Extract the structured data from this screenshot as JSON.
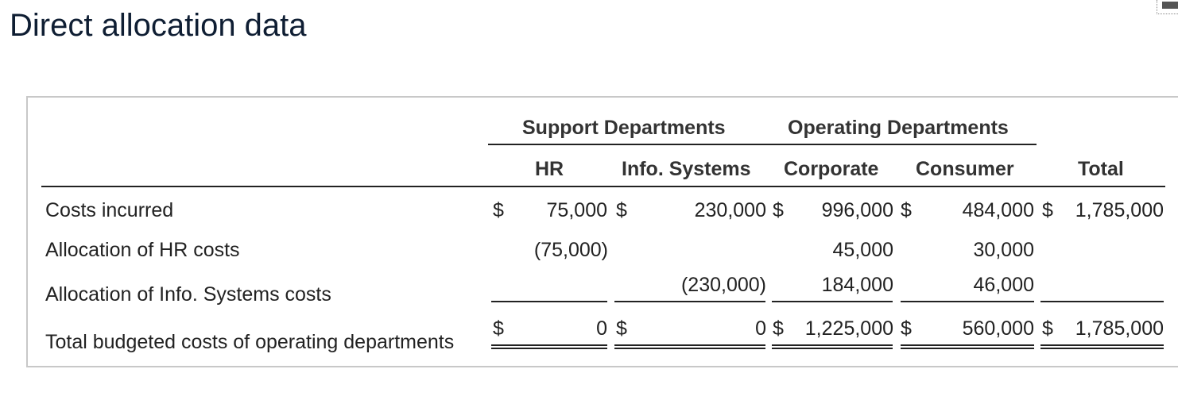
{
  "title": "Direct allocation data",
  "header": {
    "group_support": "Support Departments",
    "group_operating": "Operating Departments",
    "col_hr": "HR",
    "col_info": "Info. Systems",
    "col_corporate": "Corporate",
    "col_consumer": "Consumer",
    "col_total": "Total"
  },
  "rows": {
    "costs": {
      "label": "Costs incurred",
      "hr_cur": "$",
      "hr": "75,000",
      "info_cur": "$",
      "info": "230,000",
      "corp_cur": "$",
      "corp": "996,000",
      "cons_cur": "$",
      "cons": "484,000",
      "total_cur": "$",
      "total": "1,785,000"
    },
    "alloc_hr": {
      "label": "Allocation of HR costs",
      "hr": "(75,000)",
      "corp": "45,000",
      "cons": "30,000"
    },
    "alloc_info": {
      "label": "Allocation of Info. Systems costs",
      "info": "(230,000)",
      "corp": "184,000",
      "cons": "46,000"
    },
    "total": {
      "label": "Total budgeted costs of operating departments",
      "hr_cur": "$",
      "hr": "0",
      "info_cur": "$",
      "info": "0",
      "corp_cur": "$",
      "corp": "1,225,000",
      "cons_cur": "$",
      "cons": "560,000",
      "total_cur": "$",
      "total": "1,785,000"
    }
  }
}
